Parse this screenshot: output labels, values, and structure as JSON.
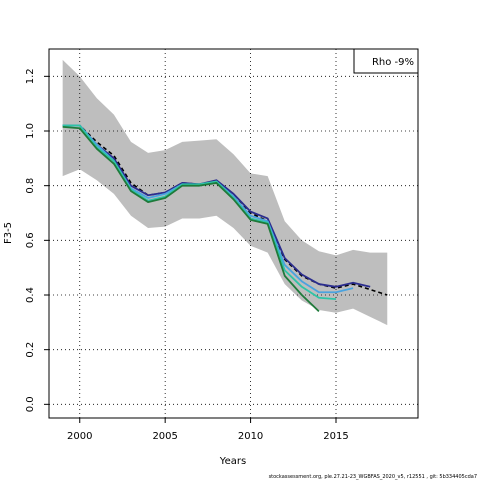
{
  "chart_data": {
    "type": "line",
    "xlabel": "Years",
    "ylabel": "F3-5",
    "xlim": [
      1998.2,
      2019.8
    ],
    "ylim": [
      -0.05,
      1.3
    ],
    "x_ticks": [
      2000,
      2005,
      2010,
      2015
    ],
    "y_ticks": [
      0.0,
      0.2,
      0.4,
      0.6,
      0.8,
      1.0,
      1.2
    ],
    "grid": true,
    "legend_position": "top-right",
    "annotation": "Rho -9%",
    "footer": "stockassessment.org, ple.27.21-23_WGBFAS_2020_v5, r12551 , git: 5b334405cda7",
    "confidence_band": {
      "color": "#bebebe",
      "x": [
        1999,
        2000,
        2001,
        2002,
        2003,
        2004,
        2005,
        2006,
        2007,
        2008,
        2009,
        2010,
        2011,
        2012,
        2013,
        2014,
        2015,
        2016,
        2017,
        2018
      ],
      "upper": [
        1.26,
        1.2,
        1.12,
        1.06,
        0.96,
        0.92,
        0.93,
        0.96,
        0.965,
        0.97,
        0.915,
        0.845,
        0.835,
        0.67,
        0.6,
        0.56,
        0.545,
        0.565,
        0.555,
        0.555
      ],
      "lower": [
        0.835,
        0.86,
        0.82,
        0.77,
        0.69,
        0.645,
        0.65,
        0.68,
        0.68,
        0.69,
        0.645,
        0.58,
        0.555,
        0.44,
        0.38,
        0.345,
        0.335,
        0.35,
        0.32,
        0.29
      ]
    },
    "series": [
      {
        "color": "#000000",
        "dashed": true,
        "x": [
          1999,
          2000,
          2001,
          2002,
          2003,
          2004,
          2005,
          2006,
          2007,
          2008,
          2009,
          2010,
          2011,
          2012,
          2013,
          2014,
          2015,
          2016,
          2017,
          2018
        ],
        "values": [
          1.02,
          1.02,
          0.96,
          0.91,
          0.81,
          0.765,
          0.775,
          0.81,
          0.805,
          0.815,
          0.77,
          0.7,
          0.67,
          0.53,
          0.47,
          0.44,
          0.425,
          0.44,
          0.42,
          0.4
        ]
      },
      {
        "color": "#2b2d8e",
        "dashed": false,
        "x": [
          1999,
          2000,
          2001,
          2002,
          2003,
          2004,
          2005,
          2006,
          2007,
          2008,
          2009,
          2010,
          2011,
          2012,
          2013,
          2014,
          2015,
          2016,
          2017
        ],
        "values": [
          1.02,
          1.02,
          0.95,
          0.9,
          0.8,
          0.765,
          0.775,
          0.81,
          0.805,
          0.82,
          0.77,
          0.705,
          0.68,
          0.535,
          0.475,
          0.44,
          0.43,
          0.445,
          0.43
        ]
      },
      {
        "color": "#4aa3df",
        "dashed": false,
        "x": [
          1999,
          2000,
          2001,
          2002,
          2003,
          2004,
          2005,
          2006,
          2007,
          2008,
          2009,
          2010,
          2011,
          2012,
          2013,
          2014,
          2015,
          2016
        ],
        "values": [
          1.02,
          1.02,
          0.95,
          0.89,
          0.79,
          0.755,
          0.77,
          0.805,
          0.8,
          0.815,
          0.76,
          0.69,
          0.67,
          0.51,
          0.45,
          0.41,
          0.41,
          0.425
        ]
      },
      {
        "color": "#2ec4a6",
        "dashed": false,
        "x": [
          1999,
          2000,
          2001,
          2002,
          2003,
          2004,
          2005,
          2006,
          2007,
          2008,
          2009,
          2010,
          2011,
          2012,
          2013,
          2014,
          2015
        ],
        "values": [
          1.02,
          1.02,
          0.94,
          0.89,
          0.785,
          0.745,
          0.76,
          0.805,
          0.805,
          0.815,
          0.755,
          0.68,
          0.665,
          0.49,
          0.43,
          0.39,
          0.385
        ]
      },
      {
        "color": "#1f7a3a",
        "dashed": false,
        "x": [
          1999,
          2000,
          2001,
          2002,
          2003,
          2004,
          2005,
          2006,
          2007,
          2008,
          2009,
          2010,
          2011,
          2012,
          2013,
          2014
        ],
        "values": [
          1.015,
          1.01,
          0.935,
          0.88,
          0.78,
          0.74,
          0.755,
          0.8,
          0.8,
          0.81,
          0.75,
          0.675,
          0.66,
          0.47,
          0.4,
          0.34
        ]
      }
    ]
  }
}
